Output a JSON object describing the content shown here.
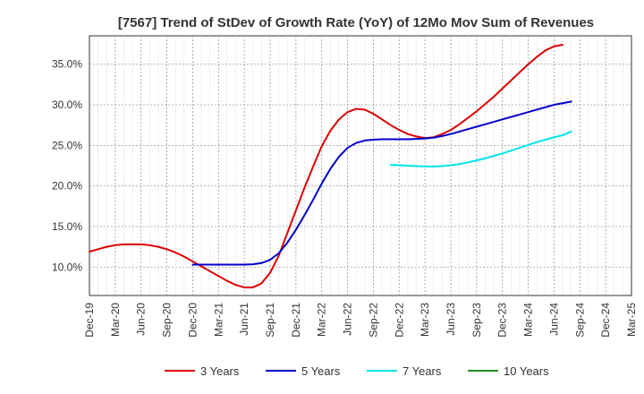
{
  "chart_data": {
    "type": "line",
    "title": "[7567]  Trend of StDev of Growth Rate (YoY) of 12Mo Mov Sum of Revenues",
    "xlabel": "",
    "ylabel": "",
    "x_ticks": [
      "Dec-19",
      "Mar-20",
      "Jun-20",
      "Sep-20",
      "Dec-20",
      "Mar-21",
      "Jun-21",
      "Sep-21",
      "Dec-21",
      "Mar-22",
      "Jun-22",
      "Sep-22",
      "Dec-22",
      "Mar-23",
      "Jun-23",
      "Sep-23",
      "Dec-23",
      "Mar-24",
      "Jun-24",
      "Sep-24",
      "Dec-24",
      "Mar-25"
    ],
    "y_ticks": [
      {
        "value": 10,
        "label": "10.0%"
      },
      {
        "value": 15,
        "label": "15.0%"
      },
      {
        "value": 20,
        "label": "20.0%"
      },
      {
        "value": 25,
        "label": "25.0%"
      },
      {
        "value": 30,
        "label": "30.0%"
      },
      {
        "value": 35,
        "label": "35.0%"
      }
    ],
    "ylim": [
      6.5,
      38.5
    ],
    "xlim": [
      0,
      63
    ],
    "grid": true,
    "legend_position": "bottom",
    "series": [
      {
        "name": "3 Years",
        "color": "#dd0000",
        "points": [
          [
            0,
            11.9
          ],
          [
            1,
            12.2
          ],
          [
            2,
            12.5
          ],
          [
            3,
            12.7
          ],
          [
            4,
            12.8
          ],
          [
            5,
            12.8
          ],
          [
            6,
            12.8
          ],
          [
            7,
            12.7
          ],
          [
            8,
            12.5
          ],
          [
            9,
            12.2
          ],
          [
            10,
            11.8
          ],
          [
            11,
            11.3
          ],
          [
            12,
            10.7
          ],
          [
            13,
            10.1
          ],
          [
            14,
            9.5
          ],
          [
            15,
            8.9
          ],
          [
            16,
            8.3
          ],
          [
            17,
            7.8
          ],
          [
            18,
            7.5
          ],
          [
            19,
            7.5
          ],
          [
            20,
            8.0
          ],
          [
            21,
            9.3
          ],
          [
            22,
            11.4
          ],
          [
            23,
            14.2
          ],
          [
            24,
            17.0
          ],
          [
            25,
            19.8
          ],
          [
            26,
            22.4
          ],
          [
            27,
            24.9
          ],
          [
            28,
            26.8
          ],
          [
            29,
            28.2
          ],
          [
            30,
            29.1
          ],
          [
            31,
            29.5
          ],
          [
            32,
            29.4
          ],
          [
            33,
            28.9
          ],
          [
            34,
            28.2
          ],
          [
            35,
            27.5
          ],
          [
            36,
            26.9
          ],
          [
            37,
            26.4
          ],
          [
            38,
            26.1
          ],
          [
            39,
            25.9
          ],
          [
            40,
            26.0
          ],
          [
            41,
            26.4
          ],
          [
            42,
            26.9
          ],
          [
            43,
            27.6
          ],
          [
            44,
            28.4
          ],
          [
            45,
            29.2
          ],
          [
            46,
            30.1
          ],
          [
            47,
            31.0
          ],
          [
            48,
            32.0
          ],
          [
            49,
            33.0
          ],
          [
            50,
            34.0
          ],
          [
            51,
            35.0
          ],
          [
            52,
            35.9
          ],
          [
            53,
            36.7
          ],
          [
            54,
            37.2
          ],
          [
            55,
            37.4
          ]
        ]
      },
      {
        "name": "5 Years",
        "color": "#0000cc",
        "points": [
          [
            12,
            10.3
          ],
          [
            13,
            10.3
          ],
          [
            14,
            10.3
          ],
          [
            15,
            10.3
          ],
          [
            16,
            10.3
          ],
          [
            17,
            10.3
          ],
          [
            18,
            10.3
          ],
          [
            19,
            10.35
          ],
          [
            20,
            10.5
          ],
          [
            21,
            10.9
          ],
          [
            22,
            11.7
          ],
          [
            23,
            13.0
          ],
          [
            24,
            14.6
          ],
          [
            25,
            16.4
          ],
          [
            26,
            18.3
          ],
          [
            27,
            20.3
          ],
          [
            28,
            22.1
          ],
          [
            29,
            23.6
          ],
          [
            30,
            24.7
          ],
          [
            31,
            25.3
          ],
          [
            32,
            25.6
          ],
          [
            33,
            25.7
          ],
          [
            34,
            25.75
          ],
          [
            35,
            25.75
          ],
          [
            36,
            25.75
          ],
          [
            37,
            25.75
          ],
          [
            38,
            25.8
          ],
          [
            39,
            25.85
          ],
          [
            40,
            25.95
          ],
          [
            41,
            26.15
          ],
          [
            42,
            26.4
          ],
          [
            43,
            26.7
          ],
          [
            44,
            27.0
          ],
          [
            45,
            27.3
          ],
          [
            46,
            27.6
          ],
          [
            47,
            27.9
          ],
          [
            48,
            28.2
          ],
          [
            49,
            28.5
          ],
          [
            50,
            28.8
          ],
          [
            51,
            29.1
          ],
          [
            52,
            29.4
          ],
          [
            53,
            29.7
          ],
          [
            54,
            30.0
          ],
          [
            55,
            30.2
          ],
          [
            56,
            30.4
          ]
        ]
      },
      {
        "name": "7 Years",
        "color": "#00e5ee",
        "points": [
          [
            35,
            22.6
          ],
          [
            36,
            22.55
          ],
          [
            37,
            22.5
          ],
          [
            38,
            22.45
          ],
          [
            39,
            22.4
          ],
          [
            40,
            22.4
          ],
          [
            41,
            22.45
          ],
          [
            42,
            22.55
          ],
          [
            43,
            22.7
          ],
          [
            44,
            22.9
          ],
          [
            45,
            23.15
          ],
          [
            46,
            23.4
          ],
          [
            47,
            23.7
          ],
          [
            48,
            24.0
          ],
          [
            49,
            24.35
          ],
          [
            50,
            24.7
          ],
          [
            51,
            25.05
          ],
          [
            52,
            25.4
          ],
          [
            53,
            25.7
          ],
          [
            54,
            26.0
          ],
          [
            55,
            26.25
          ],
          [
            56,
            26.7
          ]
        ]
      },
      {
        "name": "10 Years",
        "color": "#228b22",
        "points": []
      }
    ]
  }
}
